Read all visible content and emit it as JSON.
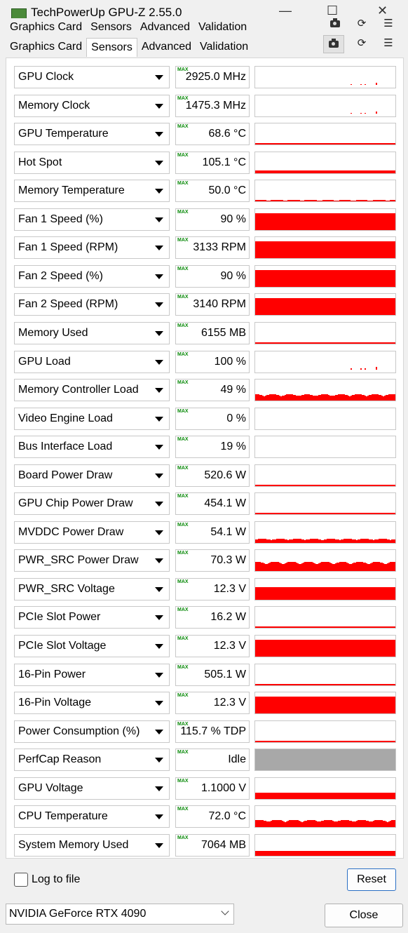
{
  "window": {
    "title": "TechPowerUp GPU-Z 2.55.0",
    "minimize": "—",
    "maximize": "☐",
    "close": "✕"
  },
  "tabs": [
    "Graphics Card",
    "Sensors",
    "Advanced",
    "Validation"
  ],
  "active_tab": "Sensors",
  "max_tag": "MAX",
  "sensors": [
    {
      "name": "GPU Clock",
      "value": "2925.0 MHz",
      "level": 0.04,
      "shape": "spikes"
    },
    {
      "name": "Memory Clock",
      "value": "1475.3 MHz",
      "level": 0.02,
      "shape": "spikes"
    },
    {
      "name": "GPU Temperature",
      "value": "68.6 °C",
      "level": 0.06,
      "shape": "line"
    },
    {
      "name": "Hot Spot",
      "value": "105.1 °C",
      "level": 0.12,
      "shape": "line"
    },
    {
      "name": "Memory Temperature",
      "value": "50.0 °C",
      "level": 0.06,
      "shape": "noisy"
    },
    {
      "name": "Fan 1 Speed (%)",
      "value": "90 %",
      "level": 0.8,
      "shape": "fill"
    },
    {
      "name": "Fan 1 Speed (RPM)",
      "value": "3133 RPM",
      "level": 0.8,
      "shape": "fill"
    },
    {
      "name": "Fan 2 Speed (%)",
      "value": "90 %",
      "level": 0.8,
      "shape": "fill"
    },
    {
      "name": "Fan 2 Speed (RPM)",
      "value": "3140 RPM",
      "level": 0.8,
      "shape": "fill"
    },
    {
      "name": "Memory Used",
      "value": "6155 MB",
      "level": 0.06,
      "shape": "line"
    },
    {
      "name": "GPU Load",
      "value": "100 %",
      "level": 0.05,
      "shape": "spikes"
    },
    {
      "name": "Memory Controller Load",
      "value": "49 %",
      "level": 0.3,
      "shape": "noisy"
    },
    {
      "name": "Video Engine Load",
      "value": "0 %",
      "level": 0.0,
      "shape": "none"
    },
    {
      "name": "Bus Interface Load",
      "value": "19 %",
      "level": 0.0,
      "shape": "none"
    },
    {
      "name": "Board Power Draw",
      "value": "520.6 W",
      "level": 0.06,
      "shape": "line"
    },
    {
      "name": "GPU Chip Power Draw",
      "value": "454.1 W",
      "level": 0.06,
      "shape": "line"
    },
    {
      "name": "MVDDC Power Draw",
      "value": "54.1 W",
      "level": 0.2,
      "shape": "noisy"
    },
    {
      "name": "PWR_SRC Power Draw",
      "value": "70.3 W",
      "level": 0.45,
      "shape": "noisy"
    },
    {
      "name": "PWR_SRC Voltage",
      "value": "12.3 V",
      "level": 0.6,
      "shape": "fill"
    },
    {
      "name": "PCIe Slot Power",
      "value": "16.2 W",
      "level": 0.08,
      "shape": "line"
    },
    {
      "name": "PCIe Slot Voltage",
      "value": "12.3 V",
      "level": 0.8,
      "shape": "fill"
    },
    {
      "name": "16-Pin Power",
      "value": "505.1 W",
      "level": 0.05,
      "shape": "line"
    },
    {
      "name": "16-Pin Voltage",
      "value": "12.3 V",
      "level": 0.8,
      "shape": "fill"
    },
    {
      "name": "Power Consumption (%)",
      "value": "115.7 % TDP",
      "level": 0.08,
      "shape": "line"
    },
    {
      "name": "PerfCap Reason",
      "value": "Idle",
      "level": 1.0,
      "shape": "grey"
    },
    {
      "name": "GPU Voltage",
      "value": "1.1000 V",
      "level": 0.3,
      "shape": "fill"
    },
    {
      "name": "CPU Temperature",
      "value": "72.0 °C",
      "level": 0.35,
      "shape": "noisy"
    },
    {
      "name": "System Memory Used",
      "value": "7064 MB",
      "level": 0.22,
      "shape": "fill"
    }
  ],
  "log_to_file": {
    "label": "Log to file",
    "checked": false
  },
  "reset_label": "Reset",
  "gpu_select": {
    "value": "NVIDIA GeForce RTX 4090"
  },
  "close_label": "Close",
  "colors": {
    "graph": "#ff0000",
    "perfcap": "#a8a8a8",
    "max_tag": "#0a8a0a"
  }
}
